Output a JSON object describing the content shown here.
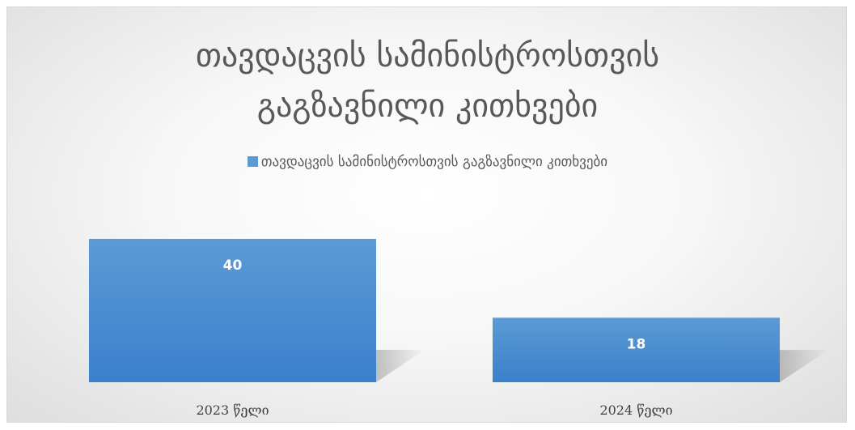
{
  "chart_data": {
    "type": "bar",
    "title_lines": [
      "თავდაცვის სამინისტროსთვის",
      "გაგზავნილი კითხვები"
    ],
    "categories": [
      "2023 წელი",
      "2024 წელი"
    ],
    "series": [
      {
        "name": "თავდაცვის სამინისტროსთვის გაგზავნილი კითხვები",
        "values": [
          40,
          18
        ]
      }
    ],
    "data_labels": [
      "40",
      "18"
    ],
    "ylim": [
      0,
      40
    ],
    "grid": false,
    "legend_position": "top",
    "colors": {
      "bar_top": "#5b9bd5",
      "bar_bottom": "#3a80cc",
      "text": "#595959",
      "data_label": "#ffffff"
    }
  }
}
